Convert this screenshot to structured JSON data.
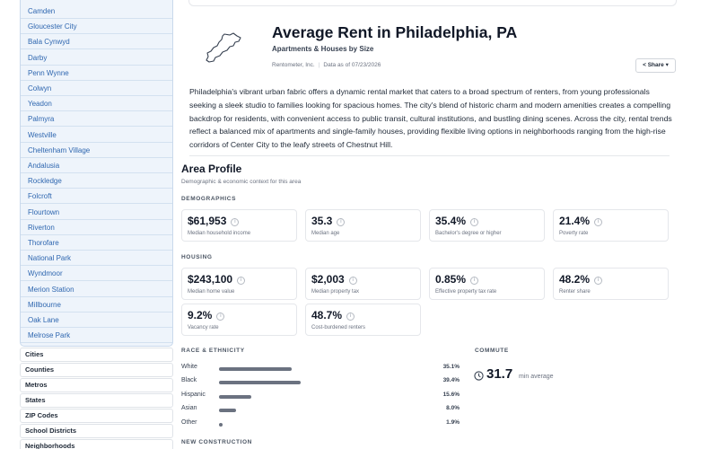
{
  "sidebar": {
    "nearby": [
      "Camden",
      "Gloucester City",
      "Bala Cynwyd",
      "Darby",
      "Penn Wynne",
      "Colwyn",
      "Yeadon",
      "Palmyra",
      "Westville",
      "Cheltenham Village",
      "Andalusia",
      "Rockledge",
      "Folcroft",
      "Flourtown",
      "Riverton",
      "Thorofare",
      "National Park",
      "Wyndmoor",
      "Merion Station",
      "Millbourne",
      "Oak Lane",
      "Melrose Park"
    ],
    "categories": [
      "Cities",
      "Counties",
      "Metros",
      "States",
      "ZIP Codes",
      "School Districts",
      "Neighborhoods"
    ]
  },
  "header": {
    "title": "Average Rent in Philadelphia, PA",
    "subtitle": "Apartments & Houses by Size",
    "source": "Rentometer, Inc.",
    "date": "Data as of 07/23/2026",
    "share_label": "Share",
    "share_caret": "▾"
  },
  "intro": "Philadelphia's vibrant urban fabric offers a dynamic rental market that caters to a broad spectrum of renters, from young professionals seeking a sleek studio to families looking for spacious homes. The city's blend of historic charm and modern amenities creates a compelling backdrop for residents, with convenient access to public transit, cultural institutions, and bustling dining scenes. Across the city, rental trends reflect a balanced mix of apartments and single-family houses, providing flexible living options in neighborhoods ranging from the high-rise corridors of Center City to the leafy streets of Chestnut Hill.",
  "area_profile": {
    "title": "Area Profile",
    "subtitle": "Demographic & economic context for this area",
    "demographics_label": "DEMOGRAPHICS",
    "demographics": [
      {
        "value": "$61,953",
        "label": "Median household income"
      },
      {
        "value": "35.3",
        "label": "Median age"
      },
      {
        "value": "35.4%",
        "label": "Bachelor's degree or higher"
      },
      {
        "value": "21.4%",
        "label": "Poverty rate"
      }
    ],
    "housing_label": "HOUSING",
    "housing": [
      {
        "value": "$243,100",
        "label": "Median home value"
      },
      {
        "value": "$2,003",
        "label": "Median property tax"
      },
      {
        "value": "0.85%",
        "label": "Effective property tax rate"
      },
      {
        "value": "48.2%",
        "label": "Renter share"
      },
      {
        "value": "9.2%",
        "label": "Vacancy rate"
      },
      {
        "value": "48.7%",
        "label": "Cost-burdened renters"
      }
    ],
    "info_glyph": "i"
  },
  "race": {
    "label": "RACE & ETHNICITY",
    "rows": [
      {
        "name": "White",
        "value": 35.1,
        "pct": "35.1%"
      },
      {
        "name": "Black",
        "value": 39.4,
        "pct": "39.4%"
      },
      {
        "name": "Hispanic",
        "value": 15.6,
        "pct": "15.6%"
      },
      {
        "name": "Asian",
        "value": 8.0,
        "pct": "8.0%"
      },
      {
        "name": "Other",
        "value": 1.9,
        "pct": "1.9%"
      }
    ]
  },
  "commute": {
    "label": "COMMUTE",
    "value": "31.7",
    "unit": "min average"
  },
  "new_construction_label": "NEW CONSTRUCTION",
  "colors": {
    "link": "#2f67b0",
    "bar": "#6b7280",
    "sidebar_bg": "#eef4fb"
  }
}
